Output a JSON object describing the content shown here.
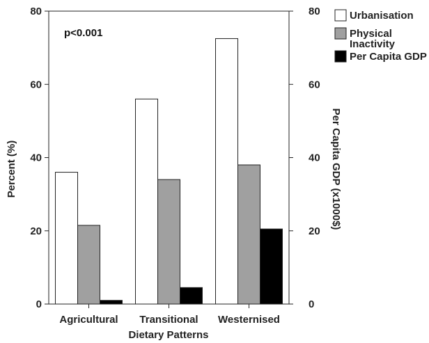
{
  "chart_data": {
    "type": "bar",
    "categories": [
      "Agricultural",
      "Transitional",
      "Westernised"
    ],
    "series": [
      {
        "name": "Urbanisation",
        "values": [
          36,
          56,
          72.5
        ],
        "color": "#ffffff",
        "axis": "left"
      },
      {
        "name": "Physical Inactivity",
        "values": [
          21.5,
          34,
          38
        ],
        "color": "#a0a0a0",
        "axis": "left"
      },
      {
        "name": "Per Capita GDP",
        "values": [
          1,
          4.5,
          20.5
        ],
        "color": "#000000",
        "axis": "right"
      }
    ],
    "legend_labels": [
      [
        "Urbanisation"
      ],
      [
        "Physical",
        "Inactivity"
      ],
      [
        "Per Capita GDP"
      ]
    ],
    "xlabel": "Dietary Patterns",
    "ylabel": "Percent (%)",
    "ylabel_right": "Per Capita GDP (x1000$)",
    "ylim": [
      0,
      80
    ],
    "ylim_right": [
      0,
      80
    ],
    "yticks": [
      "0",
      "20",
      "40",
      "60",
      "80"
    ],
    "yticks_right": [
      "0",
      "20",
      "40",
      "60",
      "80"
    ],
    "annotation": "p<0.001",
    "legend_position": "top-right, outside plot",
    "grid": false
  }
}
